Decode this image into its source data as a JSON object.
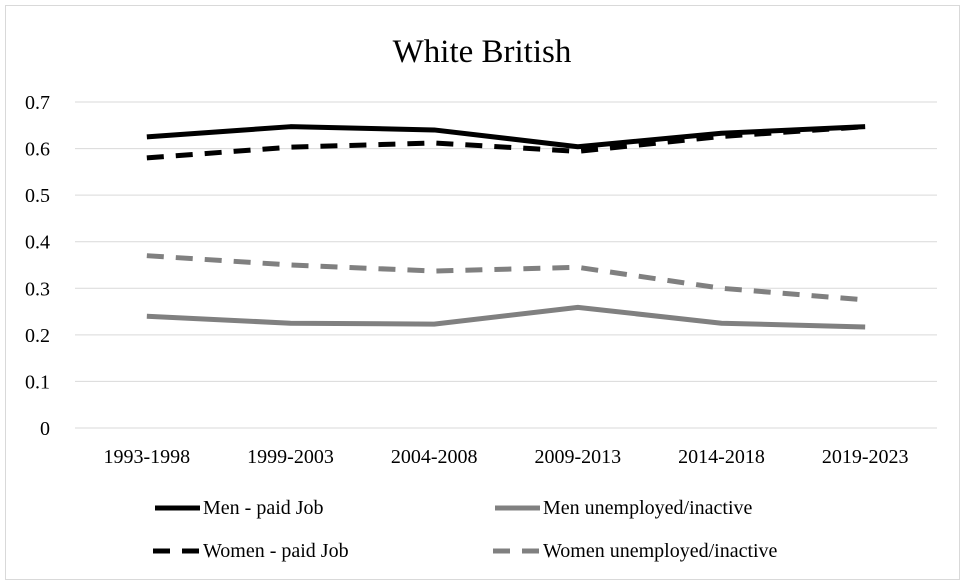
{
  "chart_data": {
    "type": "line",
    "title": "White British",
    "xlabel": "",
    "ylabel": "",
    "categories": [
      "1993-1998",
      "1999-2003",
      "2004-2008",
      "2009-2013",
      "2014-2018",
      "2019-2023"
    ],
    "ylim": [
      0,
      0.7
    ],
    "yticks": [
      "0",
      "0.1",
      "0.2",
      "0.3",
      "0.4",
      "0.5",
      "0.6",
      "0.7"
    ],
    "grid": true,
    "legend_position": "bottom",
    "series": [
      {
        "name": "Men - paid Job",
        "color": "#000000",
        "dash": "solid",
        "values": [
          0.625,
          0.647,
          0.64,
          0.604,
          0.633,
          0.647
        ]
      },
      {
        "name": "Men unemployed/inactive",
        "color": "#808080",
        "dash": "solid",
        "values": [
          0.24,
          0.225,
          0.223,
          0.259,
          0.225,
          0.217
        ]
      },
      {
        "name": "Women - paid Job",
        "color": "#000000",
        "dash": "dashed",
        "values": [
          0.58,
          0.603,
          0.612,
          0.594,
          0.626,
          0.647
        ]
      },
      {
        "name": "Women unemployed/inactive",
        "color": "#808080",
        "dash": "dashed",
        "values": [
          0.37,
          0.35,
          0.337,
          0.345,
          0.3,
          0.275
        ]
      }
    ]
  }
}
